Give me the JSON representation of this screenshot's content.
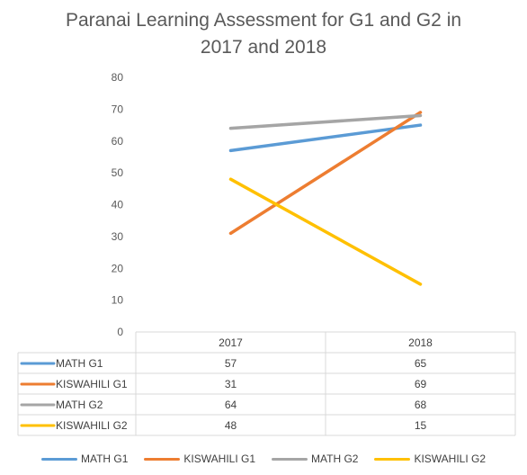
{
  "chart_data": {
    "type": "line",
    "title": "Paranai Learning Assessment for G1 and G2 in\n2017 and 2018",
    "categories": [
      "2017",
      "2018"
    ],
    "series": [
      {
        "name": "MATH G1",
        "values": [
          57,
          65
        ],
        "color": "#5B9BD5"
      },
      {
        "name": "KISWAHILI G1",
        "values": [
          31,
          69
        ],
        "color": "#ED7D31"
      },
      {
        "name": "MATH G2",
        "values": [
          64,
          68
        ],
        "color": "#A5A5A5"
      },
      {
        "name": "KISWAHILI G2",
        "values": [
          48,
          15
        ],
        "color": "#FFC000"
      }
    ],
    "ylim": [
      0,
      80
    ],
    "yticks": [
      0,
      10,
      20,
      30,
      40,
      50,
      60,
      70,
      80
    ],
    "grid": false,
    "data_table": true,
    "legend": "bottom"
  }
}
